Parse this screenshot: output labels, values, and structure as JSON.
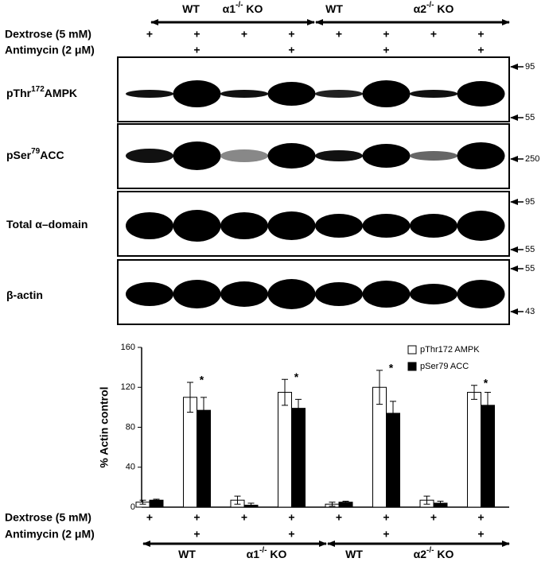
{
  "blot_header": {
    "groups": [
      [
        "WT"
      ],
      [
        "α1",
        "-/-",
        " KO"
      ],
      [
        "WT"
      ],
      [
        "α2",
        "-/-",
        " KO"
      ]
    ],
    "conditions": [
      {
        "label": "Dextrose  (5 mM)",
        "marks": [
          "+",
          "+",
          "+",
          "+",
          "+",
          "+",
          "+",
          "+"
        ]
      },
      {
        "label": "Antimycin (2 μM)",
        "marks": [
          null,
          "+",
          null,
          "+",
          null,
          "+",
          null,
          "+"
        ]
      }
    ]
  },
  "blots": [
    {
      "label": [
        "pThr",
        "172",
        "AMPK"
      ],
      "markers": [
        "95",
        "55"
      ]
    },
    {
      "label": [
        "pSer",
        "79",
        "ACC"
      ],
      "markers": [
        "250"
      ]
    },
    {
      "label": [
        "Total α–domain"
      ],
      "markers": [
        "95",
        "55"
      ]
    },
    {
      "label": [
        "β-actin"
      ],
      "markers": [
        "55",
        "43"
      ]
    }
  ],
  "chart_data": {
    "type": "bar",
    "ylabel": "% Actin control",
    "ylim": [
      0,
      160
    ],
    "yticks": [
      0,
      40,
      80,
      120,
      160
    ],
    "legend": "upper right",
    "series": [
      {
        "name": "pThr172 AMPK",
        "color": "#ffffff",
        "values": [
          5,
          110,
          7,
          115,
          3,
          120,
          7,
          115
        ],
        "errors": [
          2,
          15,
          4,
          13,
          2,
          17,
          4,
          7
        ]
      },
      {
        "name": "pSer79 ACC",
        "color": "#000000",
        "values": [
          7,
          97,
          2,
          99,
          5,
          94,
          4,
          102
        ],
        "errors": [
          1,
          13,
          2,
          9,
          1,
          12,
          2,
          13
        ]
      }
    ],
    "annotations": [
      null,
      "*",
      null,
      "*",
      null,
      "*",
      null,
      "*"
    ],
    "conditions": [
      {
        "label": "Dextrose  (5 mM)",
        "marks": [
          "+",
          "+",
          "+",
          "+",
          "+",
          "+",
          "+",
          "+"
        ]
      },
      {
        "label": "Antimycin (2 μM)",
        "marks": [
          null,
          "+",
          null,
          "+",
          null,
          "+",
          null,
          "+"
        ]
      }
    ],
    "groups": [
      [
        "WT"
      ],
      [
        "α1",
        "-/-",
        " KO"
      ],
      [
        "WT"
      ],
      [
        "α2",
        "-/-",
        " KO"
      ]
    ]
  }
}
